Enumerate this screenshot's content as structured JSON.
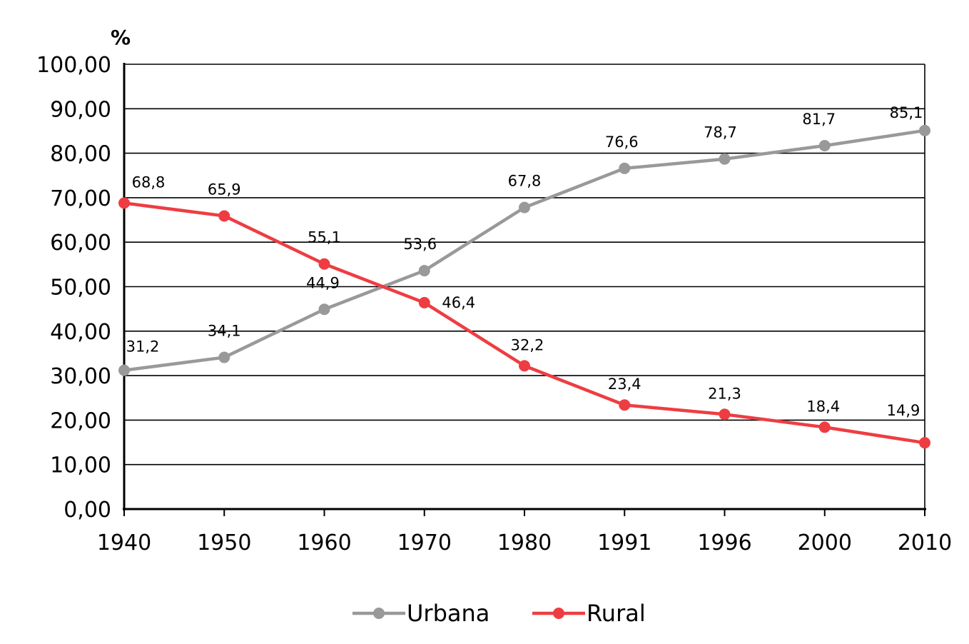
{
  "chart_data": {
    "type": "line",
    "title": "",
    "xlabel": "",
    "ylabel": "%",
    "categories": [
      "1940",
      "1950",
      "1960",
      "1970",
      "1980",
      "1991",
      "1996",
      "2000",
      "2010"
    ],
    "series": [
      {
        "name": "Urbana",
        "color": "#999999",
        "values": [
          31.2,
          34.1,
          44.9,
          53.6,
          67.8,
          76.6,
          78.7,
          81.7,
          85.1
        ],
        "labels": [
          "31,2",
          "34,1",
          "44,9",
          "53,6",
          "67,8",
          "76,6",
          "78,7",
          "81,7",
          "85,1"
        ]
      },
      {
        "name": "Rural",
        "color": "#ee3d42",
        "values": [
          68.8,
          65.9,
          55.1,
          46.4,
          32.2,
          23.4,
          21.3,
          18.4,
          14.9
        ],
        "labels": [
          "68,8",
          "65,9",
          "55,1",
          "46,4",
          "32,2",
          "23,4",
          "21,3",
          "18,4",
          "14,9"
        ]
      }
    ],
    "ylim": [
      0,
      100
    ],
    "yticks": [
      "0,00",
      "10,00",
      "20,00",
      "30,00",
      "40,00",
      "50,00",
      "60,00",
      "70,00",
      "80,00",
      "90,00",
      "100,00"
    ],
    "grid": true,
    "legend": "bottom"
  }
}
